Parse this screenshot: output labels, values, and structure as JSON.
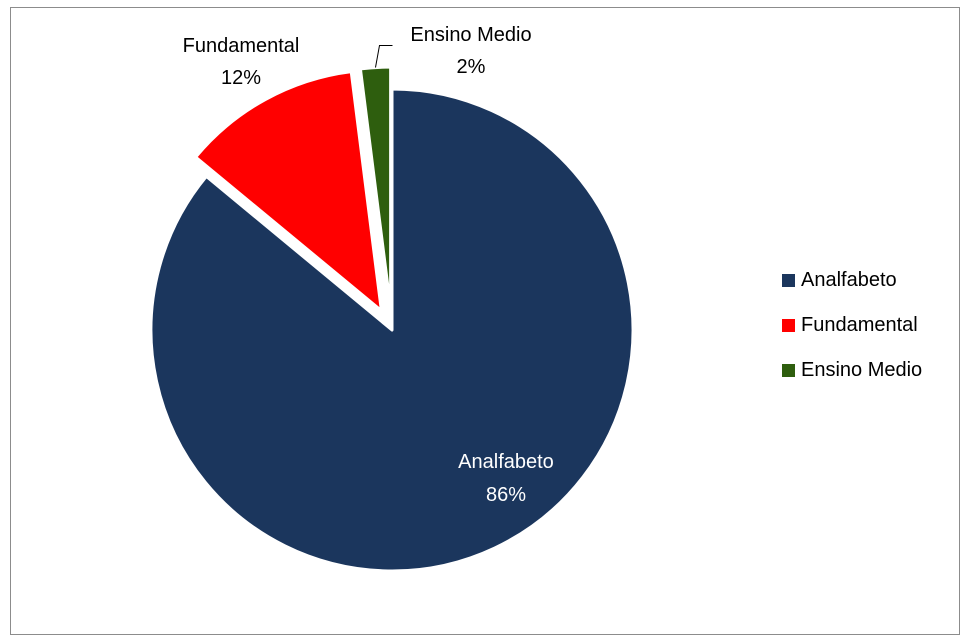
{
  "chart_data": {
    "type": "pie",
    "title": "",
    "legend_position": "right",
    "slices": [
      {
        "name": "Analfabeto",
        "value": 86,
        "label": "Analfabeto",
        "pct_label": "86%",
        "color": "#1b365d",
        "exploded": false
      },
      {
        "name": "Fundamental",
        "value": 12,
        "label": "Fundamental",
        "pct_label": "12%",
        "color": "#ff0000",
        "exploded": true
      },
      {
        "name": "Ensino Medio",
        "value": 2,
        "label": "Ensino Medio",
        "pct_label": "2%",
        "color": "#2e5e0e",
        "exploded": true
      }
    ]
  }
}
